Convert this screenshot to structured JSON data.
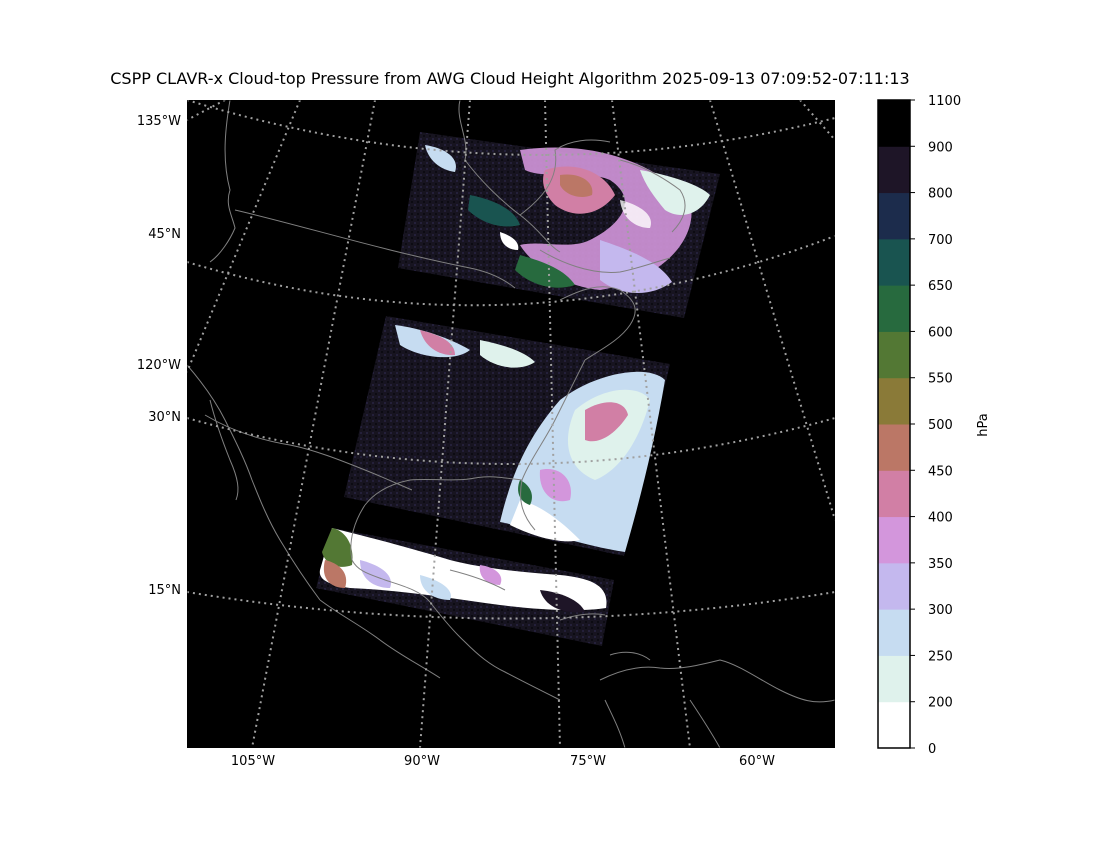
{
  "title": "CSPP CLAVR-x Cloud-top Pressure from AWG Cloud Height Algorithm 2025-09-13 07:09:52-07:11:13",
  "map": {
    "meridian_labels_bottom": [
      "105°W",
      "90°W",
      "75°W",
      "60°W"
    ],
    "meridian_labels_left": [
      "135°W",
      "120°W"
    ],
    "parallel_labels": [
      "45°N",
      "30°N",
      "15°N"
    ],
    "background_color": "#000000",
    "coastline_color": "#808080",
    "gridline_color": "#a0a0a0"
  },
  "colorbar": {
    "unit_label": "hPa",
    "levels": [
      {
        "min": 0,
        "max": 200,
        "label": "0",
        "color": "#ffffff"
      },
      {
        "min": 200,
        "max": 250,
        "label": "200",
        "color": "#dff2ec"
      },
      {
        "min": 250,
        "max": 300,
        "label": "250",
        "color": "#c6dcf1"
      },
      {
        "min": 300,
        "max": 350,
        "label": "300",
        "color": "#c4b8ee"
      },
      {
        "min": 350,
        "max": 400,
        "label": "350",
        "color": "#d396dc"
      },
      {
        "min": 400,
        "max": 450,
        "label": "400",
        "color": "#d17fa5"
      },
      {
        "min": 450,
        "max": 500,
        "label": "450",
        "color": "#bb7766"
      },
      {
        "min": 500,
        "max": 550,
        "label": "500",
        "color": "#8a7a38"
      },
      {
        "min": 550,
        "max": 600,
        "label": "550",
        "color": "#537834"
      },
      {
        "min": 600,
        "max": 650,
        "label": "600",
        "color": "#276a3e"
      },
      {
        "min": 650,
        "max": 700,
        "label": "650",
        "color": "#195450"
      },
      {
        "min": 700,
        "max": 800,
        "label": "700",
        "color": "#1c2c4c"
      },
      {
        "min": 800,
        "max": 900,
        "label": "800",
        "color": "#1e1527"
      },
      {
        "min": 900,
        "max": 1100,
        "label": "900",
        "color": "#000000"
      }
    ],
    "top_label": "1100"
  }
}
